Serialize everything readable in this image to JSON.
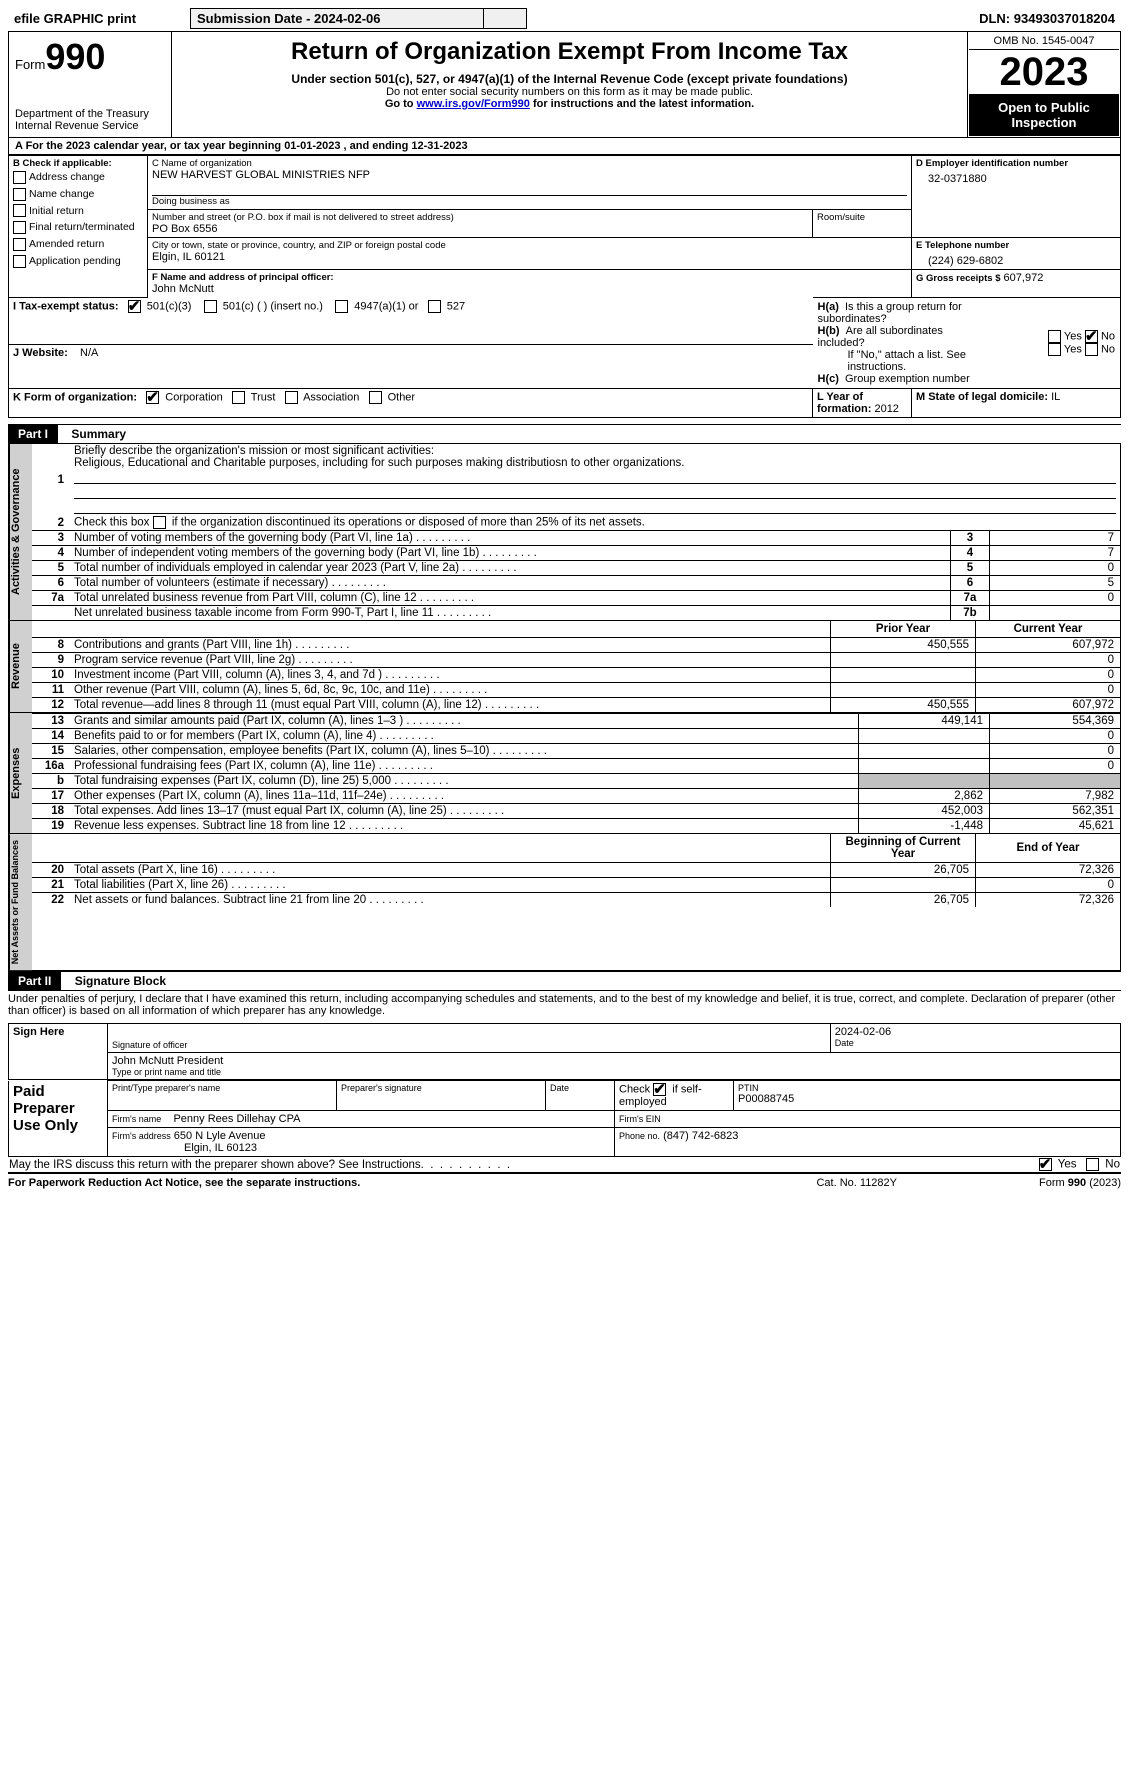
{
  "top": {
    "efile": "efile GRAPHIC print",
    "submission": "Submission Date - 2024-02-06",
    "dln_label": "DLN:",
    "dln": "93493037018204"
  },
  "header": {
    "form_word": "Form",
    "form_num": "990",
    "dept": "Department of the Treasury Internal Revenue Service",
    "title": "Return of Organization Exempt From Income Tax",
    "sub1": "Under section 501(c), 527, or 4947(a)(1) of the Internal Revenue Code (except private foundations)",
    "sub2": "Do not enter social security numbers on this form as it may be made public.",
    "sub3_a": "Go to ",
    "sub3_link": "www.irs.gov/Form990",
    "sub3_b": " for instructions and the latest information.",
    "omb": "OMB No. 1545-0047",
    "year": "2023",
    "inspect": "Open to Public Inspection"
  },
  "lineA": "A For the 2023 calendar year, or tax year beginning 01-01-2023   , and ending 12-31-2023",
  "boxB": {
    "label": "B Check if applicable:",
    "items": [
      "Address change",
      "Name change",
      "Initial return",
      "Final return/terminated",
      "Amended return",
      "Application pending"
    ]
  },
  "boxC": {
    "name_lbl": "C Name of organization",
    "name": "NEW HARVEST GLOBAL MINISTRIES NFP",
    "dba_lbl": "Doing business as",
    "street_lbl": "Number and street (or P.O. box if mail is not delivered to street address)",
    "room_lbl": "Room/suite",
    "street": "PO Box 6556",
    "city_lbl": "City or town, state or province, country, and ZIP or foreign postal code",
    "city": "Elgin, IL  60121"
  },
  "boxD": {
    "lbl": "D Employer identification number",
    "val": "32-0371880"
  },
  "boxE": {
    "lbl": "E Telephone number",
    "val": "(224) 629-6802"
  },
  "boxG": {
    "lbl": "G Gross receipts $",
    "val": "607,972"
  },
  "boxF": {
    "lbl": "F  Name and address of principal officer:",
    "name": "John McNutt"
  },
  "boxH": {
    "a": "H(a)  Is this a group return for subordinates?",
    "b": "H(b)  Are all subordinates included?",
    "note": "If \"No,\" attach a list. See instructions.",
    "c": "H(c)  Group exemption number",
    "yes": "Yes",
    "no": "No"
  },
  "boxI": {
    "lbl": "I   Tax-exempt status:",
    "c3": "501(c)(3)",
    "c": "501(c) (  ) (insert no.)",
    "a1": "4947(a)(1) or",
    "s527": "527"
  },
  "boxJ": {
    "lbl": "J   Website:",
    "val": "N/A"
  },
  "boxK": {
    "lbl": "K Form of organization:",
    "corp": "Corporation",
    "trust": "Trust",
    "assoc": "Association",
    "other": "Other"
  },
  "boxL": {
    "lbl": "L Year of formation:",
    "val": "2012"
  },
  "boxM": {
    "lbl": "M State of legal domicile:",
    "val": "IL"
  },
  "part1": {
    "hdr": "Part I",
    "title": "Summary",
    "l1_lbl": "Briefly describe the organization's mission or most significant activities:",
    "l1_txt": "Religious, Educational and Charitable purposes, including for such purposes making distributiosn to other organizations.",
    "l2": "Check this box        if the organization discontinued its operations or disposed of more than 25% of its net assets.",
    "rows_gov": [
      {
        "n": "3",
        "t": "Number of voting members of the governing body (Part VI, line 1a)",
        "c": "3",
        "v": "7"
      },
      {
        "n": "4",
        "t": "Number of independent voting members of the governing body (Part VI, line 1b)",
        "c": "4",
        "v": "7"
      },
      {
        "n": "5",
        "t": "Total number of individuals employed in calendar year 2023 (Part V, line 2a)",
        "c": "5",
        "v": "0"
      },
      {
        "n": "6",
        "t": "Total number of volunteers (estimate if necessary)",
        "c": "6",
        "v": "5"
      },
      {
        "n": "7a",
        "t": "Total unrelated business revenue from Part VIII, column (C), line 12",
        "c": "7a",
        "v": "0"
      },
      {
        "n": "",
        "t": "Net unrelated business taxable income from Form 990-T, Part I, line 11",
        "c": "7b",
        "v": ""
      }
    ],
    "col_prior": "Prior Year",
    "col_current": "Current Year",
    "rows_rev": [
      {
        "n": "8",
        "t": "Contributions and grants (Part VIII, line 1h)",
        "p": "450,555",
        "c": "607,972"
      },
      {
        "n": "9",
        "t": "Program service revenue (Part VIII, line 2g)",
        "p": "",
        "c": "0"
      },
      {
        "n": "10",
        "t": "Investment income (Part VIII, column (A), lines 3, 4, and 7d )",
        "p": "",
        "c": "0"
      },
      {
        "n": "11",
        "t": "Other revenue (Part VIII, column (A), lines 5, 6d, 8c, 9c, 10c, and 11e)",
        "p": "",
        "c": "0"
      },
      {
        "n": "12",
        "t": "Total revenue—add lines 8 through 11 (must equal Part VIII, column (A), line 12)",
        "p": "450,555",
        "c": "607,972"
      }
    ],
    "rows_exp": [
      {
        "n": "13",
        "t": "Grants and similar amounts paid (Part IX, column (A), lines 1–3 )",
        "p": "449,141",
        "c": "554,369"
      },
      {
        "n": "14",
        "t": "Benefits paid to or for members (Part IX, column (A), line 4)",
        "p": "",
        "c": "0"
      },
      {
        "n": "15",
        "t": "Salaries, other compensation, employee benefits (Part IX, column (A), lines 5–10)",
        "p": "",
        "c": "0"
      },
      {
        "n": "16a",
        "t": "Professional fundraising fees (Part IX, column (A), line 11e)",
        "p": "",
        "c": "0"
      },
      {
        "n": "b",
        "t": "Total fundraising expenses (Part IX, column (D), line 25) 5,000",
        "p": "GRAY",
        "c": "GRAY"
      },
      {
        "n": "17",
        "t": "Other expenses (Part IX, column (A), lines 11a–11d, 11f–24e)",
        "p": "2,862",
        "c": "7,982"
      },
      {
        "n": "18",
        "t": "Total expenses. Add lines 13–17 (must equal Part IX, column (A), line 25)",
        "p": "452,003",
        "c": "562,351"
      },
      {
        "n": "19",
        "t": "Revenue less expenses. Subtract line 18 from line 12",
        "p": "-1,448",
        "c": "45,621"
      }
    ],
    "col_begin": "Beginning of Current Year",
    "col_end": "End of Year",
    "rows_net": [
      {
        "n": "20",
        "t": "Total assets (Part X, line 16)",
        "p": "26,705",
        "c": "72,326"
      },
      {
        "n": "21",
        "t": "Total liabilities (Part X, line 26)",
        "p": "",
        "c": "0"
      },
      {
        "n": "22",
        "t": "Net assets or fund balances. Subtract line 21 from line 20",
        "p": "26,705",
        "c": "72,326"
      }
    ],
    "side_gov": "Activities & Governance",
    "side_rev": "Revenue",
    "side_exp": "Expenses",
    "side_net": "Net Assets or Fund Balances"
  },
  "part2": {
    "hdr": "Part II",
    "title": "Signature Block",
    "decl": "Under penalties of perjury, I declare that I have examined this return, including accompanying schedules and statements, and to the best of my knowledge and belief, it is true, correct, and complete. Declaration of preparer (other than officer) is based on all information of which preparer has any knowledge."
  },
  "sign": {
    "here": "Sign Here",
    "sig_lbl": "Signature of officer",
    "date_lbl": "Date",
    "date": "2024-02-06",
    "name": "John McNutt President",
    "type_lbl": "Type or print name and title"
  },
  "paid": {
    "title": "Paid Preparer Use Only",
    "pt_name_lbl": "Print/Type preparer's name",
    "pt_sig_lbl": "Preparer's signature",
    "pt_date_lbl": "Date",
    "self_lbl": "Check        if self-employed",
    "ptin_lbl": "PTIN",
    "ptin": "P00088745",
    "firm_name_lbl": "Firm's name",
    "firm_name": "Penny Rees Dillehay CPA",
    "firm_ein_lbl": "Firm's EIN",
    "firm_addr_lbl": "Firm's address",
    "firm_addr1": "650 N Lyle Avenue",
    "firm_addr2": "Elgin, IL  60123",
    "phone_lbl": "Phone no.",
    "phone": "(847) 742-6823"
  },
  "discuss": {
    "txt": "May the IRS discuss this return with the preparer shown above? See Instructions.",
    "yes": "Yes",
    "no": "No"
  },
  "footer": {
    "pra": "For Paperwork Reduction Act Notice, see the separate instructions.",
    "cat": "Cat. No. 11282Y",
    "form": "Form 990 (2023)"
  }
}
